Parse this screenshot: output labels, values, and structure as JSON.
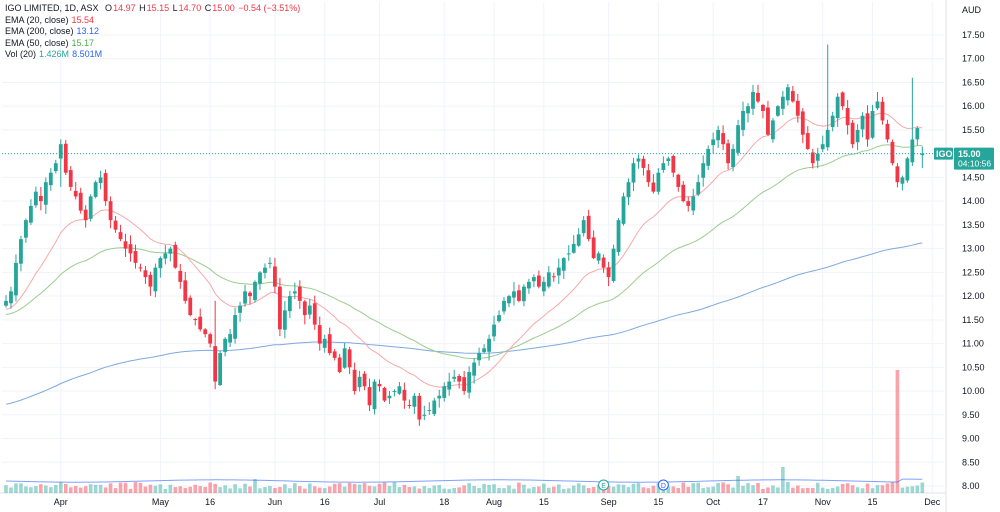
{
  "header": {
    "symbol_line": "IGO LIMITED, 1D, ASX",
    "open_label": "O",
    "open": "14.97",
    "high_label": "H",
    "high": "15.15",
    "low_label": "L",
    "low": "14.70",
    "close_label": "C",
    "close": "15.00",
    "change": "−0.54 (−3.51%)"
  },
  "indicators": [
    {
      "label": "EMA (20, close)",
      "value": "15.54",
      "color": "#f23645"
    },
    {
      "label": "EMA (200, close)",
      "value": "13.12",
      "color": "#2962ff"
    },
    {
      "label": "EMA (50, close)",
      "value": "15.17",
      "color": "#4caf50"
    }
  ],
  "volume": {
    "label": "Vol (20)",
    "value1": "1.426M",
    "value2": "8.501M",
    "color": "#26a69a",
    "color2": "#2962ff"
  },
  "currency": "AUD",
  "price_badge": {
    "ticker": "IGO",
    "price": "15.00",
    "countdown": "04:10:56"
  },
  "events": [
    {
      "label": "E",
      "date_index": 120
    },
    {
      "label": "D",
      "date_index": 132
    }
  ],
  "colors": {
    "up": "#26a69a",
    "down": "#f23645",
    "ema20": "#f7a9a9",
    "ema50": "#9ccc8f",
    "ema200": "#7fa8e0"
  },
  "chart_data": {
    "type": "candlestick",
    "title": "IGO LIMITED, 1D, ASX",
    "y_axis": {
      "ticks": [
        "8.00",
        "8.50",
        "9.00",
        "9.50",
        "10.00",
        "10.50",
        "11.00",
        "11.50",
        "12.00",
        "12.50",
        "13.00",
        "13.50",
        "14.00",
        "14.50",
        "15.00",
        "15.50",
        "16.00",
        "16.50",
        "17.00",
        "17.50"
      ],
      "range": [
        7.95,
        17.75
      ],
      "unit": "AUD"
    },
    "x_axis": {
      "ticks": [
        {
          "label": "Apr",
          "index": 11
        },
        {
          "label": "May",
          "index": 31
        },
        {
          "label": "16",
          "index": 41
        },
        {
          "label": "Jun",
          "index": 54
        },
        {
          "label": "16",
          "index": 64
        },
        {
          "label": "Jul",
          "index": 75
        },
        {
          "label": "18",
          "index": 88
        },
        {
          "label": "Aug",
          "index": 98
        },
        {
          "label": "15",
          "index": 108
        },
        {
          "label": "Sep",
          "index": 121
        },
        {
          "label": "15",
          "index": 131
        },
        {
          "label": "Oct",
          "index": 142
        },
        {
          "label": "17",
          "index": 152
        },
        {
          "label": "Nov",
          "index": 164
        },
        {
          "label": "15",
          "index": 174
        },
        {
          "label": "Dec",
          "index": 186
        }
      ]
    },
    "closes": [
      11.9,
      12.1,
      12.7,
      13.2,
      13.6,
      13.9,
      14.2,
      14.0,
      14.4,
      14.6,
      14.8,
      15.2,
      14.6,
      14.3,
      14.1,
      13.8,
      13.6,
      14.1,
      14.4,
      14.5,
      14.0,
      13.6,
      13.4,
      13.2,
      13.0,
      12.9,
      12.7,
      12.6,
      12.4,
      12.2,
      12.6,
      12.8,
      12.9,
      13.0,
      12.6,
      12.3,
      11.9,
      11.6,
      11.5,
      11.3,
      11.2,
      11.0,
      10.2,
      10.8,
      11.1,
      11.2,
      11.6,
      11.8,
      12.1,
      12.0,
      12.3,
      12.5,
      12.6,
      12.7,
      12.2,
      11.3,
      11.7,
      12.0,
      12.1,
      11.9,
      11.6,
      11.8,
      11.4,
      11.0,
      11.1,
      10.8,
      10.7,
      10.4,
      10.9,
      10.5,
      10.0,
      10.3,
      10.1,
      9.7,
      10.2,
      10.1,
      9.8,
      9.9,
      10.0,
      10.1,
      9.8,
      9.7,
      9.9,
      9.4,
      9.5,
      9.6,
      9.8,
      9.9,
      10.1,
      10.2,
      10.3,
      10.2,
      10.0,
      10.4,
      10.6,
      10.8,
      10.9,
      11.1,
      11.4,
      11.6,
      11.9,
      12.0,
      12.1,
      11.9,
      12.2,
      12.3,
      12.4,
      12.2,
      12.3,
      12.5,
      12.4,
      12.6,
      12.8,
      12.9,
      13.1,
      13.3,
      13.6,
      13.2,
      12.8,
      12.9,
      12.6,
      12.4,
      13.0,
      13.6,
      14.1,
      14.4,
      14.8,
      14.9,
      14.7,
      14.4,
      14.2,
      14.6,
      14.8,
      14.9,
      14.6,
      14.3,
      14.0,
      13.9,
      14.1,
      14.4,
      14.8,
      15.1,
      15.3,
      15.5,
      15.2,
      14.8,
      15.1,
      15.6,
      15.9,
      16.0,
      16.3,
      16.1,
      15.9,
      15.4,
      15.7,
      16.0,
      16.2,
      16.4,
      16.1,
      15.8,
      15.4,
      15.1,
      14.8,
      15.0,
      15.2,
      15.5,
      15.8,
      16.2,
      16.0,
      15.6,
      15.2,
      15.5,
      15.8,
      15.3,
      15.9,
      16.1,
      15.7,
      15.3,
      14.8,
      14.4,
      14.5,
      14.9,
      15.3,
      15.54,
      15.0
    ],
    "ema20_final": 15.54,
    "ema50_final": 15.17,
    "ema200_final": 13.12,
    "volume_final": 1.426,
    "volume_avg": 8.501,
    "last_price": 15.0
  }
}
